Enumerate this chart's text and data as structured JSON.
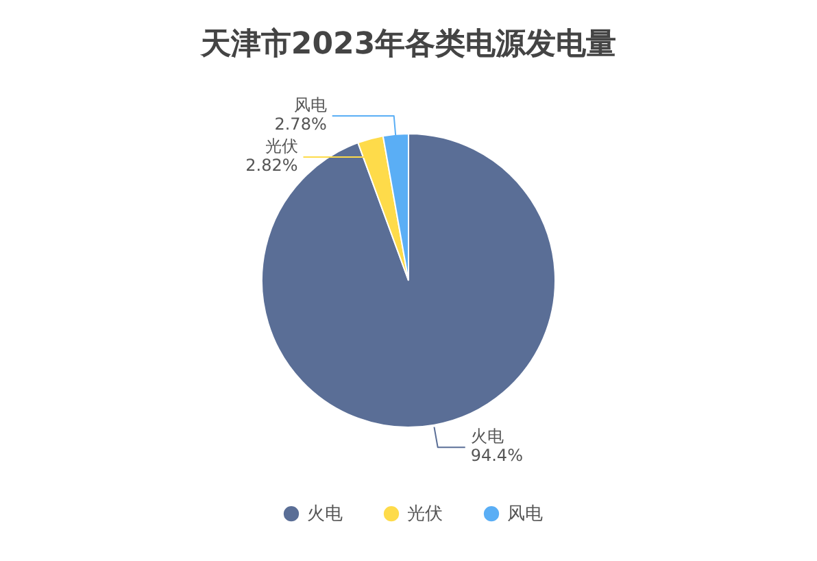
{
  "chart_data": {
    "type": "pie",
    "title": "天津市2023年各类电源发电量",
    "categories": [
      "火电",
      "光伏",
      "风电"
    ],
    "values": [
      94.4,
      2.82,
      2.78
    ],
    "value_labels": [
      "94.4%",
      "2.82%",
      "2.78%"
    ],
    "colors": [
      "#5a6e96",
      "#fedb4a",
      "#5aaef5"
    ],
    "legend": "bottom"
  }
}
